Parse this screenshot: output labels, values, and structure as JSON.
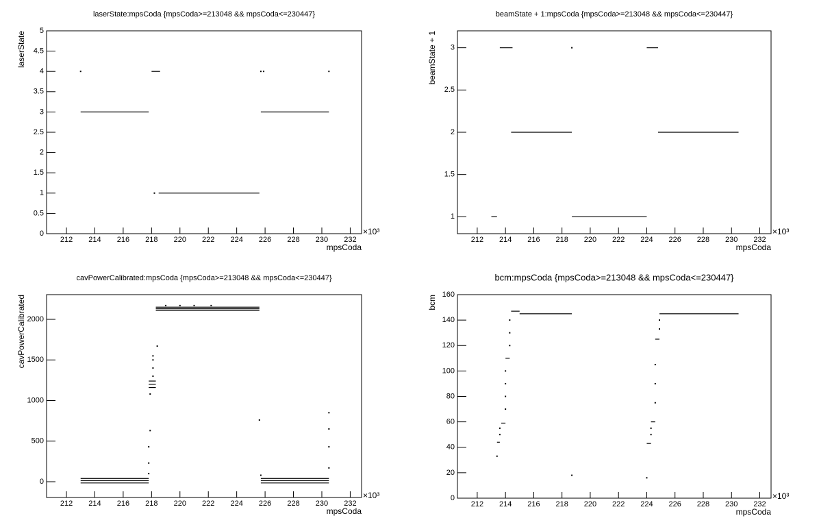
{
  "chart_data": [
    {
      "type": "scatter",
      "title": "laserState:mpsCoda {mpsCoda>=213048 && mpsCoda<=230447}",
      "x_label": "mpsCoda",
      "y_label": "laserState",
      "x_multiplier": "×10³",
      "xlim": [
        210.6,
        232.8
      ],
      "ylim": [
        0,
        5
      ],
      "xticks": [
        212,
        214,
        216,
        218,
        220,
        222,
        224,
        226,
        228,
        230,
        232
      ],
      "yticks": [
        0,
        0.5,
        1,
        1.5,
        2,
        2.5,
        3,
        3.5,
        4,
        4.5,
        5
      ],
      "segments": [
        {
          "x": [
            213.0,
            217.8
          ],
          "y": 3
        },
        {
          "x": [
            218.0,
            218.6
          ],
          "y": 4
        },
        {
          "x": [
            218.5,
            225.6
          ],
          "y": 1
        },
        {
          "x": [
            225.7,
            230.5
          ],
          "y": 3
        }
      ],
      "points": {
        "x": [
          213.0,
          218.2,
          225.7,
          225.9,
          230.5
        ],
        "y": [
          4,
          1,
          4,
          4,
          4
        ]
      }
    },
    {
      "type": "scatter",
      "title": "beamState + 1:mpsCoda {mpsCoda>=213048 && mpsCoda<=230447}",
      "x_label": "mpsCoda",
      "y_label": "beamState + 1",
      "x_multiplier": "×10³",
      "xlim": [
        210.6,
        232.8
      ],
      "ylim": [
        0.8,
        3.2
      ],
      "xticks": [
        212,
        214,
        216,
        218,
        220,
        222,
        224,
        226,
        228,
        230,
        232
      ],
      "yticks": [
        1,
        1.5,
        2,
        2.5,
        3
      ],
      "segments": [
        {
          "x": [
            213.0,
            213.4
          ],
          "y": 1
        },
        {
          "x": [
            213.6,
            214.5
          ],
          "y": 3
        },
        {
          "x": [
            214.4,
            218.7
          ],
          "y": 2
        },
        {
          "x": [
            218.7,
            224.0
          ],
          "y": 1
        },
        {
          "x": [
            224.0,
            224.8
          ],
          "y": 3
        },
        {
          "x": [
            224.8,
            230.5
          ],
          "y": 2
        }
      ],
      "points": {
        "x": [
          218.7
        ],
        "y": [
          3
        ]
      }
    },
    {
      "type": "scatter",
      "title": "cavPowerCalibrated:mpsCoda {mpsCoda>=213048 && mpsCoda<=230447}",
      "x_label": "mpsCoda",
      "y_label": "cavPowerCalibrated",
      "x_multiplier": "×10³",
      "xlim": [
        210.6,
        232.8
      ],
      "ylim": [
        -194,
        2304
      ],
      "xticks": [
        212,
        214,
        216,
        218,
        220,
        222,
        224,
        226,
        228,
        230,
        232
      ],
      "yticks": [
        0,
        500,
        1000,
        1500,
        2000
      ],
      "segments": [
        {
          "x": [
            213.0,
            217.8
          ],
          "y": 40
        },
        {
          "x": [
            213.0,
            217.8
          ],
          "y": 15
        },
        {
          "x": [
            213.0,
            217.8
          ],
          "y": -15
        },
        {
          "x": [
            217.8,
            218.3
          ],
          "y": 1240
        },
        {
          "x": [
            217.8,
            218.3
          ],
          "y": 1200
        },
        {
          "x": [
            217.8,
            218.3
          ],
          "y": 1160
        },
        {
          "x": [
            218.3,
            225.6
          ],
          "y": 2150
        },
        {
          "x": [
            218.3,
            225.6
          ],
          "y": 2130
        },
        {
          "x": [
            218.3,
            225.6
          ],
          "y": 2110
        },
        {
          "x": [
            225.7,
            230.5
          ],
          "y": 40
        },
        {
          "x": [
            225.7,
            230.5
          ],
          "y": 15
        },
        {
          "x": [
            225.7,
            230.5
          ],
          "y": -15
        }
      ],
      "points": {
        "x": [
          217.8,
          217.8,
          217.8,
          217.9,
          217.9,
          218.1,
          218.1,
          218.1,
          218.1,
          218.4,
          219.0,
          220.0,
          221.0,
          222.2,
          225.6,
          225.7,
          230.5,
          230.5,
          230.5,
          230.5
        ],
        "y": [
          100,
          230,
          430,
          630,
          1080,
          1300,
          1400,
          1500,
          1550,
          1670,
          2170,
          2170,
          2170,
          2170,
          760,
          80,
          850,
          650,
          430,
          170
        ]
      }
    },
    {
      "type": "scatter",
      "title": "bcm:mpsCoda {mpsCoda>=213048 && mpsCoda<=230447}",
      "x_label": "mpsCoda",
      "y_label": "bcm",
      "x_multiplier": "×10³",
      "xlim": [
        210.6,
        232.8
      ],
      "ylim": [
        0,
        160
      ],
      "xticks": [
        212,
        214,
        216,
        218,
        220,
        222,
        224,
        226,
        228,
        230,
        232
      ],
      "yticks": [
        0,
        20,
        40,
        60,
        80,
        100,
        120,
        140,
        160
      ],
      "segments": [
        {
          "x": [
            213.4,
            213.6
          ],
          "y": 44
        },
        {
          "x": [
            213.7,
            214.0
          ],
          "y": 59
        },
        {
          "x": [
            214.0,
            214.3
          ],
          "y": 110
        },
        {
          "x": [
            214.4,
            215.0
          ],
          "y": 147
        },
        {
          "x": [
            215.0,
            218.7
          ],
          "y": 145
        },
        {
          "x": [
            224.0,
            224.3
          ],
          "y": 43
        },
        {
          "x": [
            224.3,
            224.6
          ],
          "y": 60
        },
        {
          "x": [
            224.6,
            224.9
          ],
          "y": 125
        },
        {
          "x": [
            224.9,
            230.5
          ],
          "y": 145
        }
      ],
      "points": {
        "x": [
          213.4,
          213.6,
          213.6,
          214.0,
          214.0,
          214.0,
          214.0,
          214.3,
          214.3,
          214.3,
          218.7,
          224.0,
          224.3,
          224.3,
          224.6,
          224.6,
          224.6,
          224.9,
          224.9
        ],
        "y": [
          33,
          50,
          55,
          70,
          80,
          90,
          100,
          120,
          130,
          140,
          18,
          16,
          50,
          55,
          75,
          90,
          105,
          133,
          140
        ]
      }
    }
  ]
}
